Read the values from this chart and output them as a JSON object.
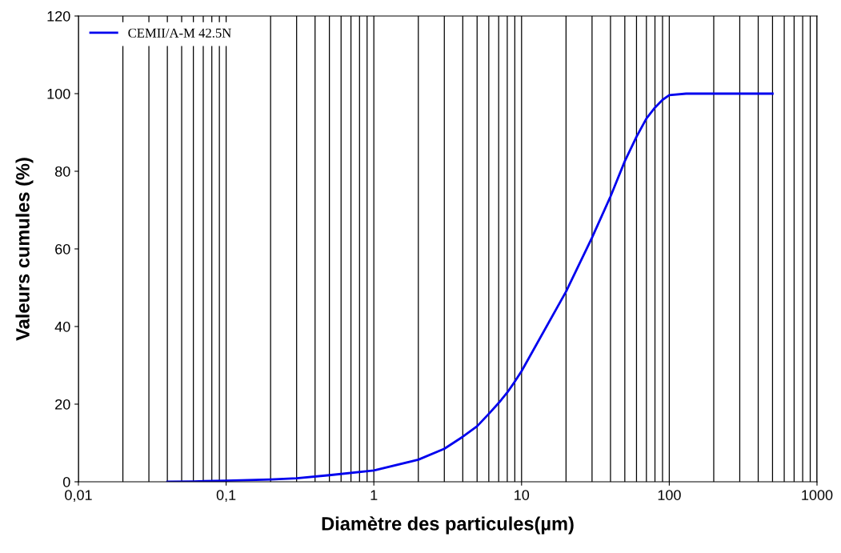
{
  "chart_data": {
    "type": "line",
    "xlabel": "Diamètre des particules(µm)",
    "ylabel": "Valeurs cumules (%)",
    "log": "x",
    "grid": "x",
    "legend": "top left",
    "marker": "none",
    "line_style": "solid",
    "xlim": [
      0.01,
      1000
    ],
    "xticks": [
      {
        "value": 0.01,
        "label": "0,01"
      },
      {
        "value": 0.1,
        "label": "0,1"
      },
      1,
      10,
      100,
      1000
    ],
    "ylim": [
      0,
      120
    ],
    "yticks": [
      0,
      20,
      40,
      60,
      80,
      100,
      120
    ],
    "series": [
      {
        "name": "CEMII/A-M 42.5N",
        "color": "#0000ee",
        "x": [
          0.04,
          0.06,
          0.1,
          0.2,
          0.3,
          0.5,
          1,
          2,
          3,
          4,
          5,
          6,
          7,
          8,
          9,
          10,
          20,
          30,
          40,
          50,
          60,
          70,
          80,
          90,
          100,
          130,
          500
        ],
        "values": [
          0,
          0.1,
          0.3,
          0.6,
          0.9,
          1.7,
          2.9,
          5.7,
          8.5,
          11.6,
          14.3,
          17.5,
          20.3,
          23,
          25.8,
          28.5,
          49,
          62.9,
          73.5,
          82.6,
          88.9,
          93.6,
          96.4,
          98.4,
          99.6,
          100,
          100
        ]
      }
    ]
  }
}
